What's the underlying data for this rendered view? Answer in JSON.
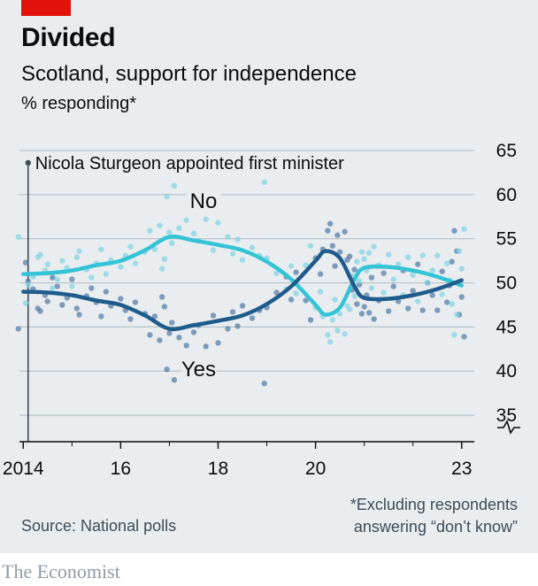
{
  "header": {
    "title": "Divided",
    "subtitle": "Scotland, support for independence",
    "unit": "% responding*"
  },
  "footer": {
    "source": "Source: National polls",
    "footnote_line1": "*Excluding respondents",
    "footnote_line2": "answering “don’t know”",
    "brand": "The Economist"
  },
  "colors": {
    "yes": "#1f5c8c",
    "no": "#35c3d6",
    "yes_dots": "#5a7fa8",
    "no_dots": "#86d4e3",
    "grid": "#b7c1ca",
    "background": "#e9edf0",
    "accent": "#e3120b"
  },
  "chart_data": {
    "type": "scatter",
    "title": "Divided",
    "subtitle": "Scotland, support for independence",
    "ylabel": "% responding*",
    "ylim": [
      32,
      65
    ],
    "xlim": [
      2013.85,
      2023.15
    ],
    "yticks": [
      35,
      40,
      45,
      50,
      55,
      60,
      65
    ],
    "xticks": [
      {
        "value": 2014,
        "label": "2014"
      },
      {
        "value": 2016,
        "label": "16"
      },
      {
        "value": 2018,
        "label": "18"
      },
      {
        "value": 2020,
        "label": "20"
      },
      {
        "value": 2023,
        "label": "23"
      }
    ],
    "axis_break": true,
    "grid": true,
    "annotation": {
      "x": 2014.1,
      "label": "Nicola Sturgeon appointed first minister"
    },
    "series": [
      {
        "name": "Yes",
        "label": "Yes",
        "label_at": [
          2017.6,
          40.2
        ],
        "trend": [
          [
            2014,
            49
          ],
          [
            2014.5,
            48.9
          ],
          [
            2015,
            48.6
          ],
          [
            2015.5,
            48
          ],
          [
            2016,
            47.5
          ],
          [
            2016.5,
            46.3
          ],
          [
            2017,
            44.8
          ],
          [
            2017.5,
            45.2
          ],
          [
            2018,
            45.7
          ],
          [
            2018.5,
            46.3
          ],
          [
            2019,
            47.6
          ],
          [
            2019.5,
            49.6
          ],
          [
            2020,
            52.5
          ],
          [
            2020.2,
            53.6
          ],
          [
            2020.5,
            52.8
          ],
          [
            2020.8,
            49.6
          ],
          [
            2021,
            48.3
          ],
          [
            2021.5,
            48.2
          ],
          [
            2022,
            48.6
          ],
          [
            2022.5,
            49.3
          ],
          [
            2023,
            50.3
          ]
        ],
        "points": [
          [
            2013.9,
            44.8
          ],
          [
            2014.05,
            52.3
          ],
          [
            2014.1,
            50.2
          ],
          [
            2014.2,
            49.3
          ],
          [
            2014.3,
            47.1
          ],
          [
            2014.35,
            46.8
          ],
          [
            2014.45,
            48.6
          ],
          [
            2014.5,
            47.9
          ],
          [
            2014.6,
            50.6
          ],
          [
            2014.7,
            49.6
          ],
          [
            2014.8,
            47.5
          ],
          [
            2014.9,
            48.3
          ],
          [
            2015.0,
            50.4
          ],
          [
            2015.1,
            47.1
          ],
          [
            2015.15,
            46.4
          ],
          [
            2015.3,
            48.5
          ],
          [
            2015.4,
            49.4
          ],
          [
            2015.5,
            47.8
          ],
          [
            2015.6,
            46.2
          ],
          [
            2015.7,
            49.0
          ],
          [
            2015.8,
            47.4
          ],
          [
            2016.0,
            48.2
          ],
          [
            2016.1,
            46.9
          ],
          [
            2016.2,
            45.9
          ],
          [
            2016.3,
            47.8
          ],
          [
            2016.5,
            46.5
          ],
          [
            2016.6,
            44.1
          ],
          [
            2016.7,
            46.2
          ],
          [
            2016.8,
            43.5
          ],
          [
            2016.85,
            48.4
          ],
          [
            2016.9,
            47.3
          ],
          [
            2016.95,
            40.2
          ],
          [
            2017.0,
            44.3
          ],
          [
            2017.05,
            45.5
          ],
          [
            2017.1,
            39.0
          ],
          [
            2017.2,
            43.8
          ],
          [
            2017.35,
            42.9
          ],
          [
            2017.5,
            44.4
          ],
          [
            2017.6,
            45.2
          ],
          [
            2017.75,
            42.8
          ],
          [
            2017.9,
            46.3
          ],
          [
            2018.0,
            43.2
          ],
          [
            2018.2,
            44.8
          ],
          [
            2018.3,
            46.7
          ],
          [
            2018.4,
            45.1
          ],
          [
            2018.5,
            47.4
          ],
          [
            2018.7,
            46.0
          ],
          [
            2018.85,
            46.9
          ],
          [
            2018.95,
            38.6
          ],
          [
            2019.0,
            47.2
          ],
          [
            2019.2,
            48.9
          ],
          [
            2019.4,
            50.7
          ],
          [
            2019.5,
            48.1
          ],
          [
            2019.6,
            51.2
          ],
          [
            2019.8,
            48.0
          ],
          [
            2019.9,
            45.8
          ],
          [
            2020.0,
            52.8
          ],
          [
            2020.1,
            51.0
          ],
          [
            2020.15,
            53.8
          ],
          [
            2020.25,
            55.9
          ],
          [
            2020.3,
            56.7
          ],
          [
            2020.35,
            54.2
          ],
          [
            2020.4,
            51.9
          ],
          [
            2020.45,
            55.4
          ],
          [
            2020.5,
            53.5
          ],
          [
            2020.6,
            55.8
          ],
          [
            2020.65,
            52.6
          ],
          [
            2020.7,
            53.0
          ],
          [
            2020.75,
            49.2
          ],
          [
            2020.8,
            51.5
          ],
          [
            2020.85,
            47.6
          ],
          [
            2020.9,
            49.8
          ],
          [
            2020.95,
            46.5
          ],
          [
            2021.0,
            47.3
          ],
          [
            2021.05,
            48.6
          ],
          [
            2021.1,
            46.6
          ],
          [
            2021.15,
            50.6
          ],
          [
            2021.2,
            45.9
          ],
          [
            2021.3,
            48.0
          ],
          [
            2021.4,
            51.1
          ],
          [
            2021.5,
            46.8
          ],
          [
            2021.6,
            49.6
          ],
          [
            2021.7,
            47.9
          ],
          [
            2021.8,
            51.4
          ],
          [
            2021.9,
            47.1
          ],
          [
            2022.0,
            49.1
          ],
          [
            2022.1,
            52.1
          ],
          [
            2022.2,
            46.9
          ],
          [
            2022.3,
            50.0
          ],
          [
            2022.4,
            48.6
          ],
          [
            2022.5,
            46.9
          ],
          [
            2022.6,
            51.3
          ],
          [
            2022.7,
            47.8
          ],
          [
            2022.75,
            49.7
          ],
          [
            2022.8,
            52.4
          ],
          [
            2022.85,
            55.9
          ],
          [
            2022.9,
            53.6
          ],
          [
            2022.95,
            46.4
          ],
          [
            2023.0,
            48.4
          ],
          [
            2023.05,
            43.9
          ]
        ]
      },
      {
        "name": "No",
        "label": "No",
        "label_at": [
          2017.7,
          59.3
        ],
        "trend": [
          [
            2014,
            51
          ],
          [
            2014.5,
            51.1
          ],
          [
            2015,
            51.4
          ],
          [
            2015.5,
            52
          ],
          [
            2016,
            52.5
          ],
          [
            2016.5,
            53.7
          ],
          [
            2017,
            55.2
          ],
          [
            2017.5,
            54.8
          ],
          [
            2018,
            54.3
          ],
          [
            2018.5,
            53.7
          ],
          [
            2019,
            52.4
          ],
          [
            2019.5,
            50.4
          ],
          [
            2020,
            47.5
          ],
          [
            2020.2,
            46.4
          ],
          [
            2020.5,
            47.2
          ],
          [
            2020.8,
            50.4
          ],
          [
            2021,
            51.7
          ],
          [
            2021.5,
            51.8
          ],
          [
            2022,
            51.4
          ],
          [
            2022.5,
            50.7
          ],
          [
            2023,
            49.7
          ]
        ],
        "points": [
          [
            2013.9,
            55.2
          ],
          [
            2014.05,
            47.7
          ],
          [
            2014.1,
            49.8
          ],
          [
            2014.2,
            50.7
          ],
          [
            2014.3,
            52.9
          ],
          [
            2014.35,
            53.2
          ],
          [
            2014.45,
            51.4
          ],
          [
            2014.5,
            52.1
          ],
          [
            2014.6,
            49.4
          ],
          [
            2014.7,
            50.4
          ],
          [
            2014.8,
            52.5
          ],
          [
            2014.9,
            51.7
          ],
          [
            2015.0,
            49.6
          ],
          [
            2015.1,
            52.9
          ],
          [
            2015.15,
            53.6
          ],
          [
            2015.3,
            51.5
          ],
          [
            2015.4,
            50.6
          ],
          [
            2015.5,
            52.2
          ],
          [
            2015.6,
            53.8
          ],
          [
            2015.7,
            51.0
          ],
          [
            2015.8,
            52.6
          ],
          [
            2016.0,
            51.8
          ],
          [
            2016.1,
            53.1
          ],
          [
            2016.2,
            54.1
          ],
          [
            2016.3,
            52.2
          ],
          [
            2016.5,
            53.5
          ],
          [
            2016.6,
            55.9
          ],
          [
            2016.7,
            53.8
          ],
          [
            2016.8,
            56.5
          ],
          [
            2016.85,
            51.6
          ],
          [
            2016.9,
            52.7
          ],
          [
            2016.95,
            59.8
          ],
          [
            2017.0,
            55.7
          ],
          [
            2017.05,
            54.5
          ],
          [
            2017.1,
            61.0
          ],
          [
            2017.2,
            56.2
          ],
          [
            2017.35,
            57.1
          ],
          [
            2017.5,
            55.6
          ],
          [
            2017.6,
            54.8
          ],
          [
            2017.75,
            57.2
          ],
          [
            2017.9,
            53.7
          ],
          [
            2018.0,
            56.8
          ],
          [
            2018.2,
            55.2
          ],
          [
            2018.3,
            53.3
          ],
          [
            2018.4,
            54.9
          ],
          [
            2018.5,
            52.6
          ],
          [
            2018.7,
            54.0
          ],
          [
            2018.85,
            53.1
          ],
          [
            2018.95,
            61.4
          ],
          [
            2019.0,
            52.8
          ],
          [
            2019.2,
            51.1
          ],
          [
            2019.4,
            49.3
          ],
          [
            2019.5,
            51.9
          ],
          [
            2019.6,
            48.8
          ],
          [
            2019.8,
            52.0
          ],
          [
            2019.9,
            54.2
          ],
          [
            2020.0,
            47.2
          ],
          [
            2020.1,
            49.0
          ],
          [
            2020.15,
            46.2
          ],
          [
            2020.25,
            44.1
          ],
          [
            2020.3,
            43.3
          ],
          [
            2020.35,
            45.8
          ],
          [
            2020.4,
            48.1
          ],
          [
            2020.45,
            44.6
          ],
          [
            2020.5,
            46.5
          ],
          [
            2020.6,
            44.2
          ],
          [
            2020.65,
            47.4
          ],
          [
            2020.7,
            47.0
          ],
          [
            2020.75,
            50.8
          ],
          [
            2020.8,
            48.5
          ],
          [
            2020.85,
            52.4
          ],
          [
            2020.9,
            50.2
          ],
          [
            2020.95,
            53.5
          ],
          [
            2021.0,
            52.7
          ],
          [
            2021.05,
            51.4
          ],
          [
            2021.1,
            53.4
          ],
          [
            2021.15,
            49.4
          ],
          [
            2021.2,
            54.1
          ],
          [
            2021.3,
            52.0
          ],
          [
            2021.4,
            48.9
          ],
          [
            2021.5,
            53.2
          ],
          [
            2021.6,
            50.4
          ],
          [
            2021.7,
            52.1
          ],
          [
            2021.8,
            48.6
          ],
          [
            2021.9,
            52.9
          ],
          [
            2022.0,
            50.9
          ],
          [
            2022.1,
            47.9
          ],
          [
            2022.2,
            53.1
          ],
          [
            2022.3,
            50.0
          ],
          [
            2022.4,
            51.4
          ],
          [
            2022.5,
            53.1
          ],
          [
            2022.6,
            48.7
          ],
          [
            2022.7,
            52.2
          ],
          [
            2022.75,
            50.3
          ],
          [
            2022.8,
            47.6
          ],
          [
            2022.85,
            44.1
          ],
          [
            2022.9,
            46.4
          ],
          [
            2022.95,
            53.6
          ],
          [
            2023.0,
            51.6
          ],
          [
            2023.05,
            56.1
          ]
        ]
      }
    ]
  }
}
